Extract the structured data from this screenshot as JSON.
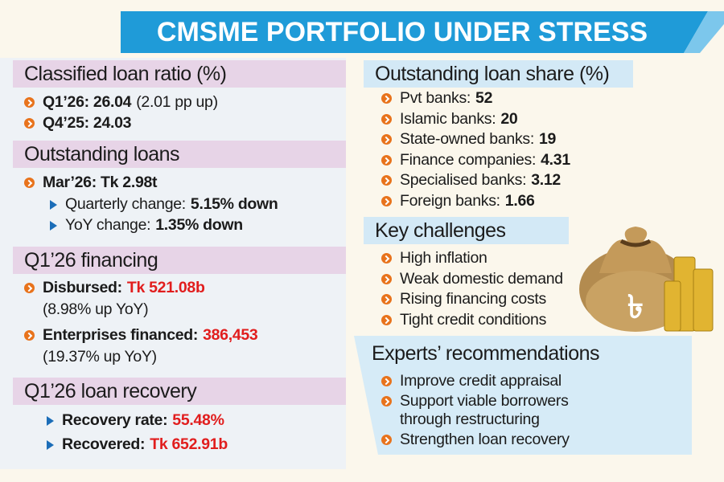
{
  "header": {
    "title": "CMSME PORTFOLIO UNDER STRESS"
  },
  "classified": {
    "title": "Classified loan ratio (%)",
    "items": [
      {
        "label": "Q1’26: 26.04",
        "note": "(2.01 pp up)"
      },
      {
        "label": "Q4’25: 24.03"
      }
    ]
  },
  "outstanding": {
    "title": "Outstanding loans",
    "main": "Mar’26: Tk 2.98t",
    "subs": [
      {
        "label": "Quarterly change:",
        "value": "5.15% down"
      },
      {
        "label": "YoY change:",
        "value": "1.35% down"
      }
    ]
  },
  "financing": {
    "title": "Q1’26 financing",
    "items": [
      {
        "label": "Disbursed:",
        "value": "Tk 521.08b",
        "note": "(8.98% up YoY)"
      },
      {
        "label": "Enterprises financed:",
        "value": "386,453",
        "note": "(19.37% up YoY)"
      }
    ]
  },
  "recovery": {
    "title": "Q1’26 loan recovery",
    "items": [
      {
        "label": "Recovery rate:",
        "value": "55.48%"
      },
      {
        "label": "Recovered:",
        "value": "Tk 652.91b"
      }
    ]
  },
  "share": {
    "title": "Outstanding loan share (%)",
    "items": [
      {
        "label": "Pvt banks:",
        "value": 52
      },
      {
        "label": "Islamic banks:",
        "value": 20
      },
      {
        "label": "State-owned banks:",
        "value": 19
      },
      {
        "label": "Finance companies:",
        "value": 4.31
      },
      {
        "label": "Specialised banks:",
        "value": 3.12
      },
      {
        "label": "Foreign banks:",
        "value": 1.66
      }
    ]
  },
  "challenges": {
    "title": "Key challenges",
    "items": [
      "High inflation",
      "Weak domestic demand",
      "Rising financing costs",
      "Tight credit conditions"
    ]
  },
  "recommendations": {
    "title": "Experts’ recommendations",
    "items": [
      "Improve credit appraisal",
      "Support viable borrowers through restructuring",
      "Strengthen loan recovery"
    ]
  }
}
